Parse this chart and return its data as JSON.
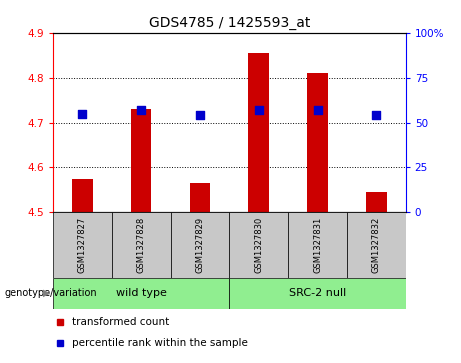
{
  "title": "GDS4785 / 1425593_at",
  "samples": [
    "GSM1327827",
    "GSM1327828",
    "GSM1327829",
    "GSM1327830",
    "GSM1327831",
    "GSM1327832"
  ],
  "red_values": [
    4.575,
    4.73,
    4.565,
    4.855,
    4.81,
    4.545
  ],
  "blue_values_pct": [
    55,
    57,
    54,
    57,
    57,
    54
  ],
  "ylim_left": [
    4.5,
    4.9
  ],
  "ylim_right": [
    0,
    100
  ],
  "yticks_left": [
    4.5,
    4.6,
    4.7,
    4.8,
    4.9
  ],
  "yticks_right": [
    0,
    25,
    50,
    75,
    100
  ],
  "bar_color": "#CC0000",
  "dot_color": "#0000CC",
  "bar_bottom": 4.5,
  "bar_width": 0.35,
  "dot_size": 30,
  "group_bg_color": "#c8c8c8",
  "group_colors": [
    "#90EE90",
    "#90EE90"
  ],
  "group_labels": [
    "wild type",
    "SRC-2 null"
  ],
  "group_ranges": [
    [
      0,
      2
    ],
    [
      3,
      5
    ]
  ],
  "legend_red": "transformed count",
  "legend_blue": "percentile rank within the sample",
  "genotype_label": "genotype/variation"
}
